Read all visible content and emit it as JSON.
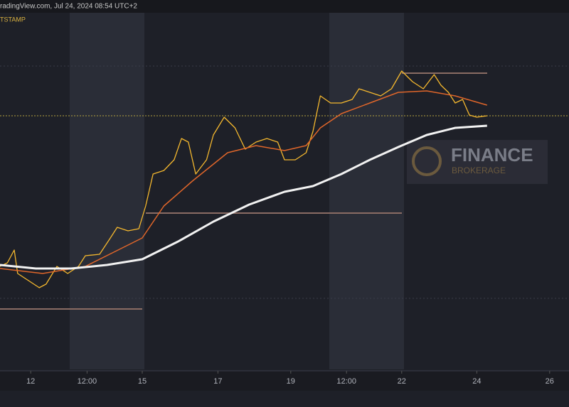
{
  "chart_data": {
    "type": "line",
    "title": "radingView.com, Jul 24, 2024 08:54 UTC+2",
    "subtitle": "TSTAMP",
    "annotations": [
      "FINANCE",
      "BROKERAGE"
    ],
    "xlim": [
      0,
      100
    ],
    "xticks": [
      {
        "value": 5.4,
        "label": "12"
      },
      {
        "value": 15.3,
        "label": "12:00"
      },
      {
        "value": 25,
        "label": "15"
      },
      {
        "value": 38.3,
        "label": "17"
      },
      {
        "value": 51.1,
        "label": "19"
      },
      {
        "value": 60.9,
        "label": "12:00"
      },
      {
        "value": 70.6,
        "label": "22"
      },
      {
        "value": 83.8,
        "label": "24"
      },
      {
        "value": 96.6,
        "label": "26"
      }
    ],
    "ylim": [
      0,
      502
    ],
    "series": [
      {
        "color": "#f5b82e",
        "x": [
          0,
          1.3,
          2.5,
          3.1,
          5,
          6.9,
          8.1,
          10,
          11.9,
          13.8,
          15,
          17.5,
          19.4,
          20.6,
          22.5,
          24.4,
          25.6,
          26.9,
          28.8,
          30.6,
          31.9,
          33.1,
          34.4,
          36.3,
          37.5,
          39.4,
          41.3,
          43.1,
          45,
          46.9,
          48.8,
          50,
          51.9,
          53.8,
          55,
          56.3,
          58.1,
          60,
          61.9,
          63.1,
          65,
          66.9,
          68.8,
          70.6,
          72.5,
          74.4,
          76.3,
          77.5,
          78.8,
          80,
          81.3,
          82.5,
          83.8,
          85.6
        ],
        "values": [
          145,
          150,
          168,
          135,
          125,
          115,
          120,
          145,
          135,
          145,
          160,
          162,
          185,
          200,
          195,
          198,
          230,
          275,
          280,
          295,
          325,
          320,
          275,
          295,
          330,
          355,
          340,
          310,
          320,
          325,
          320,
          295,
          295,
          305,
          335,
          385,
          375,
          375,
          380,
          395,
          390,
          385,
          395,
          420,
          405,
          395,
          415,
          400,
          390,
          375,
          380,
          358,
          355,
          357
        ]
      },
      {
        "color": "#e0662a",
        "x": [
          0,
          7.5,
          15,
          20,
          25,
          28.8,
          33.8,
          40,
          45,
          50,
          53.8,
          56.3,
          60,
          65,
          70,
          75,
          80,
          85.6
        ],
        "values": [
          142,
          135,
          145,
          165,
          185,
          230,
          265,
          305,
          315,
          308,
          315,
          340,
          360,
          375,
          390,
          392,
          385,
          372
        ]
      },
      {
        "color": "#f2f2f2",
        "x": [
          0,
          6.3,
          12.5,
          18.8,
          25,
          31.3,
          37.5,
          43.8,
          50,
          55,
          60,
          65,
          70,
          75,
          80,
          85.6
        ],
        "values": [
          147,
          142,
          142,
          147,
          155,
          180,
          208,
          232,
          250,
          258,
          275,
          295,
          313,
          330,
          340,
          343
        ]
      }
    ]
  }
}
